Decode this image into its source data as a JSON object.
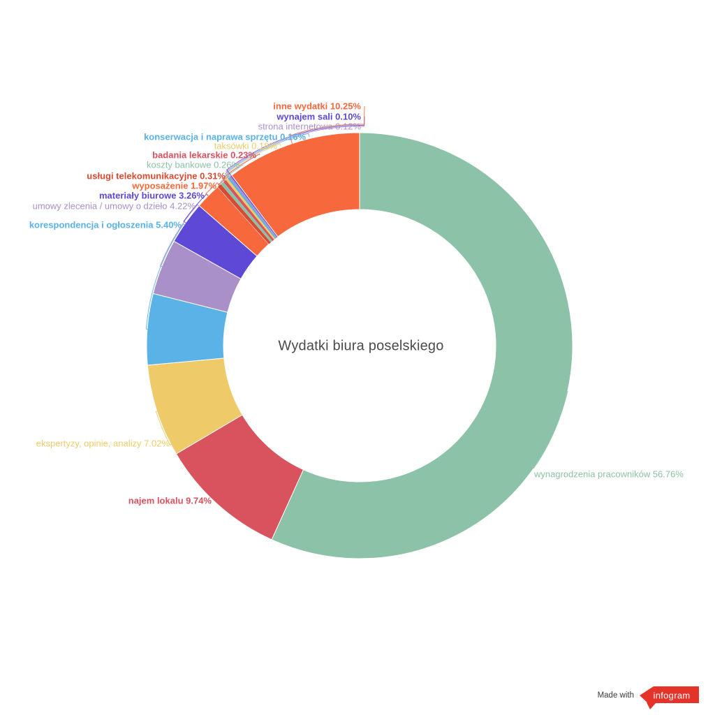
{
  "chart_data": {
    "type": "pie",
    "subtype": "donut",
    "title": "Wydatki biura poselskiego",
    "unit": "%",
    "start_angle_deg": 0,
    "direction": "clockwise",
    "legend_position": "callout-labels-around-ring",
    "slices": [
      {
        "label": "wynagrodzenia pracowników",
        "value": 56.76,
        "color": "#8cc2a7"
      },
      {
        "label": "najem lokalu",
        "value": 9.74,
        "color": "#d8535d"
      },
      {
        "label": "ekspertyzy, opinie, analizy",
        "value": 7.02,
        "color": "#eecb68"
      },
      {
        "label": "korespondencja i ogłoszenia",
        "value": 5.4,
        "color": "#5bb2e6"
      },
      {
        "label": "umowy zlecenia / umowy o dzieło",
        "value": 4.22,
        "color": "#aa90c9"
      },
      {
        "label": "materiały biurowe",
        "value": 3.26,
        "color": "#5e49d6"
      },
      {
        "label": "wyposażenie",
        "value": 1.97,
        "color": "#f8683d"
      },
      {
        "label": "usługi telekomunikacyjne",
        "value": 0.31,
        "color": "#d84b32"
      },
      {
        "label": "koszty bankowe",
        "value": 0.26,
        "color": "#8cc2a7"
      },
      {
        "label": "badania lekarskie",
        "value": 0.23,
        "color": "#d8535d"
      },
      {
        "label": "taksówki",
        "value": 0.18,
        "color": "#eecb68"
      },
      {
        "label": "konserwacja i naprawa sprzętu",
        "value": 0.16,
        "color": "#5bb2e6"
      },
      {
        "label": "strona internetowa",
        "value": 0.12,
        "color": "#aa90c9"
      },
      {
        "label": "wynajem sali",
        "value": 0.1,
        "color": "#5e49d6"
      },
      {
        "label": "inne wydatki",
        "value": 10.25,
        "color": "#f8683d"
      }
    ]
  },
  "badge": {
    "made_with": "Made with",
    "brand": "infogram",
    "brand_color": "#e6332a",
    "brand_text_color": "#ffffff",
    "made_with_color": "#3a3a3a"
  }
}
